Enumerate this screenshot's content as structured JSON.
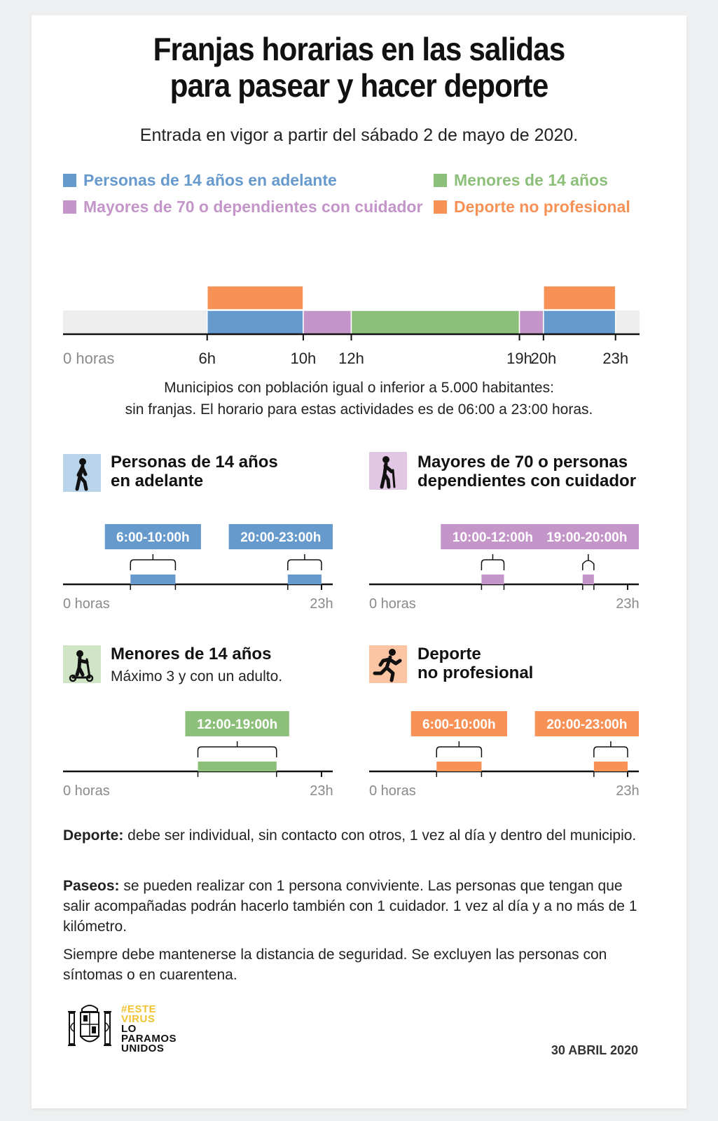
{
  "title_line1": "Franjas horarias en las salidas",
  "title_line2": "para pasear y hacer deporte",
  "subtitle": "Entrada en vigor a partir del sábado 2 de mayo de 2020.",
  "colors": {
    "blue": "#6699cc",
    "purple": "#c395c8",
    "green": "#8cc07a",
    "orange": "#f79156",
    "track": "#eeeeee",
    "campaign_yellow": "#f1c232"
  },
  "legend": [
    {
      "label": "Personas de 14 años en adelante",
      "color": "#6699cc"
    },
    {
      "label": "Menores de 14 años",
      "color": "#8cc07a"
    },
    {
      "label": "Mayores de 70 o dependientes con cuidador",
      "color": "#c395c8"
    },
    {
      "label": "Deporte no profesional",
      "color": "#f79156"
    }
  ],
  "chart_data": [
    {
      "type": "timeline",
      "x_unit": "hours",
      "xlim": [
        0,
        24
      ],
      "axis_labels": [
        {
          "hour": 0,
          "label": "0 horas"
        },
        {
          "hour": 6,
          "label": "6h"
        },
        {
          "hour": 10,
          "label": "10h"
        },
        {
          "hour": 12,
          "label": "12h"
        },
        {
          "hour": 19,
          "label": "19h"
        },
        {
          "hour": 20,
          "label": "20h"
        },
        {
          "hour": 23,
          "label": "23h"
        }
      ],
      "rows": [
        {
          "segments": [
            {
              "start": 6,
              "end": 10,
              "group": "Personas de 14 años en adelante",
              "color": "#6699cc"
            },
            {
              "start": 10,
              "end": 12,
              "group": "Mayores de 70 o dependientes con cuidador",
              "color": "#c395c8"
            },
            {
              "start": 12,
              "end": 19,
              "group": "Menores de 14 años",
              "color": "#8cc07a"
            },
            {
              "start": 19,
              "end": 20,
              "group": "Mayores de 70 o dependientes con cuidador",
              "color": "#c395c8"
            },
            {
              "start": 20,
              "end": 23,
              "group": "Personas de 14 años en adelante",
              "color": "#6699cc"
            }
          ]
        },
        {
          "segments": [
            {
              "start": 6,
              "end": 10,
              "group": "Deporte no profesional",
              "color": "#f79156"
            },
            {
              "start": 20,
              "end": 23,
              "group": "Deporte no profesional",
              "color": "#f79156"
            }
          ]
        }
      ]
    },
    {
      "type": "timeline",
      "title": "Personas de 14 años en adelante",
      "xlim": [
        0,
        24
      ],
      "axis_labels": [
        "0 horas",
        "23h"
      ],
      "color": "#6699cc",
      "ranges": [
        {
          "start": 6,
          "end": 10,
          "label": "6:00-10:00h"
        },
        {
          "start": 20,
          "end": 23,
          "label": "20:00-23:00h"
        }
      ]
    },
    {
      "type": "timeline",
      "title": "Mayores de 70 o personas dependientes con cuidador",
      "xlim": [
        0,
        24
      ],
      "axis_labels": [
        "0 horas",
        "23h"
      ],
      "color": "#c395c8",
      "ranges": [
        {
          "start": 10,
          "end": 12,
          "label": "10:00-12:00h"
        },
        {
          "start": 19,
          "end": 20,
          "label": "19:00-20:00h"
        }
      ]
    },
    {
      "type": "timeline",
      "title": "Menores de 14 años",
      "xlim": [
        0,
        24
      ],
      "axis_labels": [
        "0 horas",
        "23h"
      ],
      "color": "#8cc07a",
      "ranges": [
        {
          "start": 12,
          "end": 19,
          "label": "12:00-19:00h"
        }
      ]
    },
    {
      "type": "timeline",
      "title": "Deporte no profesional",
      "xlim": [
        0,
        24
      ],
      "axis_labels": [
        "0 horas",
        "23h"
      ],
      "color": "#f79156",
      "ranges": [
        {
          "start": 6,
          "end": 10,
          "label": "6:00-10:00h"
        },
        {
          "start": 20,
          "end": 23,
          "label": "20:00-23:00h"
        }
      ]
    }
  ],
  "note_line1": "Municipios con población igual o inferior a 5.000 habitantes:",
  "note_line2": "sin franjas. El horario para estas actividades es de 06:00 a 23:00 horas.",
  "panels": {
    "adults": {
      "title_line1": "Personas de 14 años",
      "title_line2": "en adelante",
      "icon": "walking-person-icon"
    },
    "elderly": {
      "title_line1": "Mayores de 70 o personas",
      "title_line2": "dependientes con cuidador",
      "icon": "elderly-person-cane-icon"
    },
    "minors": {
      "title": "Menores de 14 años",
      "subtitle": "Máximo 3 y con un adulto.",
      "icon": "child-scooter-icon"
    },
    "sport": {
      "title_line1": "Deporte",
      "title_line2": "no profesional",
      "icon": "running-person-icon"
    }
  },
  "rules": {
    "deporte_label": "Deporte:",
    "deporte_text": " debe ser individual, sin contacto con otros, 1 vez al día y dentro del municipio.",
    "paseos_label": "Paseos:",
    "paseos_text": " se pueden realizar con 1 persona conviviente. Las personas que tengan que salir acompañadas podrán hacerlo también con 1 cuidador. 1 vez al día y a no más de 1 kilómetro.",
    "general_text": "Siempre debe mantenerse la distancia de seguridad. Se excluyen las personas con síntomas o en cuarentena."
  },
  "footer": {
    "campaign_line1": "#ESTE",
    "campaign_line2": "VIRUS",
    "campaign_line3": "LO",
    "campaign_line4": "PARAMOS",
    "campaign_line5": "UNIDOS",
    "date": "30 ABRIL 2020",
    "logo": "spain-coat-of-arms-icon"
  }
}
